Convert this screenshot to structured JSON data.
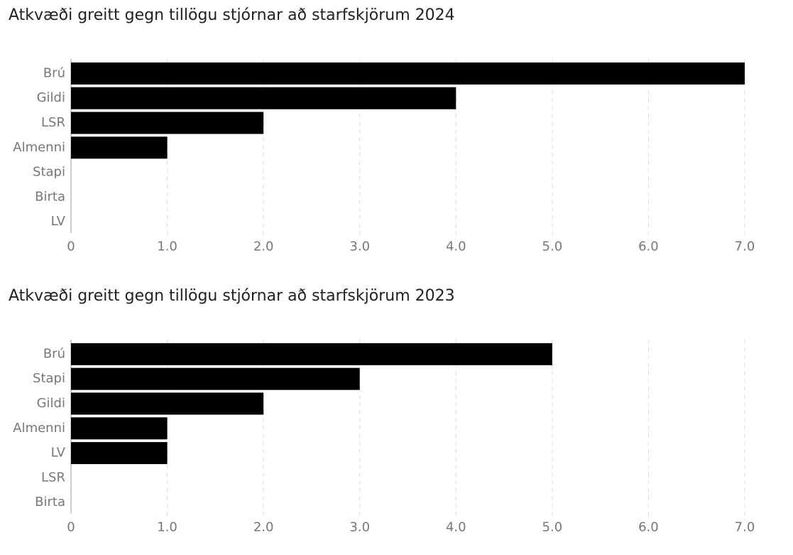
{
  "chart_data": [
    {
      "type": "bar",
      "orientation": "horizontal",
      "title": "Atkvæði greitt gegn tillögu stjórnar að starfskjörum 2024",
      "categories": [
        "Brú",
        "Gildi",
        "LSR",
        "Almenni",
        "Stapi",
        "Birta",
        "LV"
      ],
      "values": [
        7,
        4,
        2,
        1,
        0,
        0,
        0
      ],
      "color": "#000000",
      "xlim": [
        0,
        7
      ],
      "xticks": [
        0,
        {
          "value": 1,
          "label": "1.0"
        },
        {
          "value": 2,
          "label": "2.0"
        },
        {
          "value": 3,
          "label": "3.0"
        },
        {
          "value": 4,
          "label": "4.0"
        },
        {
          "value": 5,
          "label": "5.0"
        },
        {
          "value": 6,
          "label": "6.0"
        },
        {
          "value": 7,
          "label": "7.0"
        }
      ],
      "grid": true
    },
    {
      "type": "bar",
      "orientation": "horizontal",
      "title": "Atkvæði greitt gegn tillögu stjórnar að starfskjörum 2023",
      "categories": [
        "Brú",
        "Stapi",
        "Gildi",
        "Almenni",
        "LV",
        "LSR",
        "Birta"
      ],
      "values": [
        5,
        3,
        2,
        1,
        1,
        0,
        0
      ],
      "color": "#000000",
      "xlim": [
        0,
        7
      ],
      "xticks": [
        0,
        {
          "value": 1,
          "label": "1.0"
        },
        {
          "value": 2,
          "label": "2.0"
        },
        {
          "value": 3,
          "label": "3.0"
        },
        {
          "value": 4,
          "label": "4.0"
        },
        {
          "value": 5,
          "label": "5.0"
        },
        {
          "value": 6,
          "label": "6.0"
        },
        {
          "value": 7,
          "label": "7.0"
        }
      ],
      "grid": true
    }
  ]
}
